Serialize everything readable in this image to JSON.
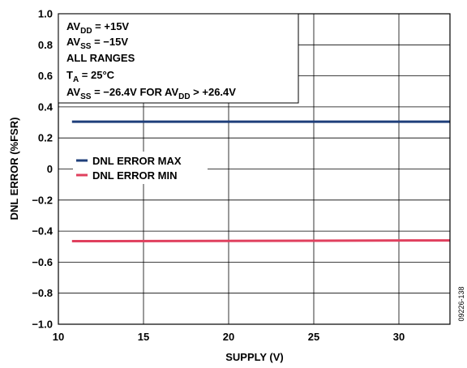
{
  "chart_data": {
    "type": "line",
    "xlabel": "SUPPLY (V)",
    "ylabel": "DNL ERROR (%FSR)",
    "xlim": [
      10,
      33
    ],
    "ylim": [
      -1.0,
      1.0
    ],
    "x_ticks": [
      "10",
      "15",
      "20",
      "25",
      "30"
    ],
    "y_ticks": [
      "1.0",
      "0.8",
      "0.6",
      "0.4",
      "0.2",
      "0",
      "−0.2",
      "−0.4",
      "−0.6",
      "−0.8",
      "−1.0"
    ],
    "grid": true,
    "series": [
      {
        "name": "DNL ERROR MAX",
        "color": "#1f3f7a",
        "x": [
          10.8,
          33
        ],
        "y": [
          0.305,
          0.305
        ]
      },
      {
        "name": "DNL ERROR MIN",
        "color": "#e0405e",
        "x": [
          10.8,
          33
        ],
        "y": [
          -0.465,
          -0.46
        ]
      }
    ],
    "legend_position": "middle-left",
    "annotations": {
      "line1": {
        "prefix": "AV",
        "sub": "DD",
        "suffix": " = +15V"
      },
      "line2": {
        "prefix": "AV",
        "sub": "SS",
        "suffix": " = −15V"
      },
      "line3": {
        "text": "ALL RANGES"
      },
      "line4": {
        "prefix": "T",
        "sub": "A",
        "suffix": " = 25°C"
      },
      "line5": {
        "p1": "AV",
        "s1": "SS",
        "m": " = −26.4V FOR AV",
        "s2": "DD",
        "e": " > +26.4V"
      }
    },
    "figure_id": "09226-138"
  }
}
